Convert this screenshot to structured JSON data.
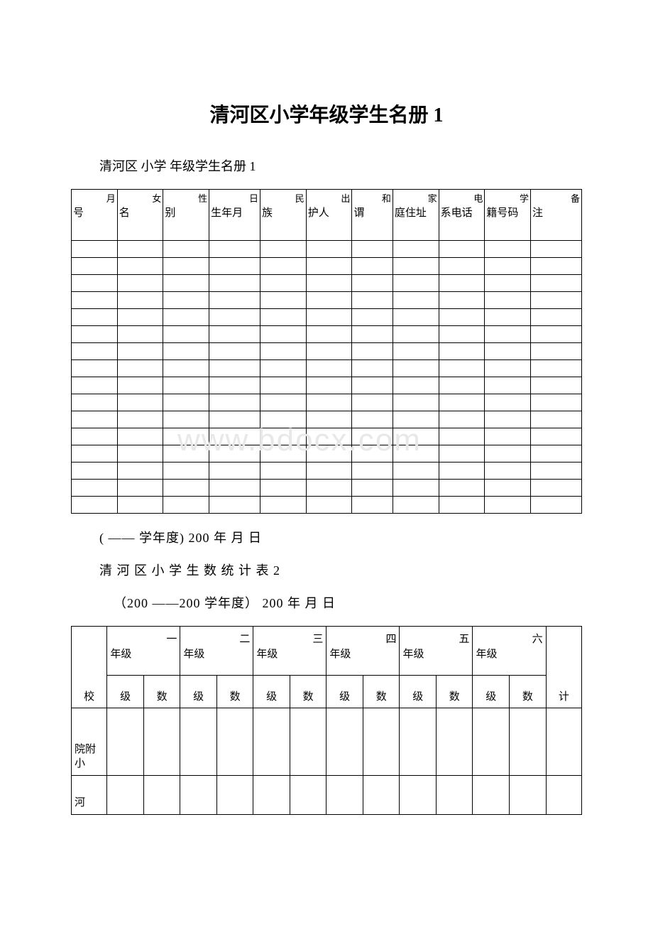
{
  "page": {
    "main_title": "清河区小学年级学生名册 1",
    "sub_title": "清河区   小学 年级学生名册 1",
    "date_line1": "(  ——   学年度) 200 年   月   日",
    "table2_title": "清 河 区 小 学 生 数 统 计 表 2",
    "date_line2": "（200 ——200   学年度）  200 年 月 日",
    "watermark": "www.bdocx.com"
  },
  "table1": {
    "headers": [
      {
        "top": "月",
        "main": "号"
      },
      {
        "top": "女",
        "main": "名"
      },
      {
        "top": "性",
        "main": "别"
      },
      {
        "top": "日",
        "main": "生年月"
      },
      {
        "top": "民",
        "main": "族"
      },
      {
        "top": "出",
        "main": "护人"
      },
      {
        "top": "和",
        "main": "谓"
      },
      {
        "top": "家",
        "main": "庭住址"
      },
      {
        "top": "电",
        "main": "系电话"
      },
      {
        "top": "学",
        "main": "籍号码"
      },
      {
        "top": "备",
        "main": "注"
      }
    ],
    "empty_row_count": 16,
    "col_widths": [
      "9%",
      "9%",
      "9%",
      "10%",
      "9%",
      "9%",
      "8%",
      "9%",
      "9%",
      "9%",
      "10%"
    ],
    "watermark_row_index": 11
  },
  "table2": {
    "col_school": "校",
    "col_total": "计",
    "grades": [
      {
        "top": "一",
        "label": "年级"
      },
      {
        "top": "二",
        "label": "年级"
      },
      {
        "top": "三",
        "label": "年级"
      },
      {
        "top": "四",
        "label": "年级"
      },
      {
        "top": "五",
        "label": "年级"
      },
      {
        "top": "六",
        "label": "年级"
      }
    ],
    "sub_headers": {
      "left": "级",
      "right": "数"
    },
    "rows": [
      {
        "school": "院附小"
      },
      {
        "school": "河"
      }
    ]
  },
  "colors": {
    "background": "#ffffff",
    "text": "#000000",
    "border": "#000000",
    "watermark": "#e8e8e8"
  }
}
